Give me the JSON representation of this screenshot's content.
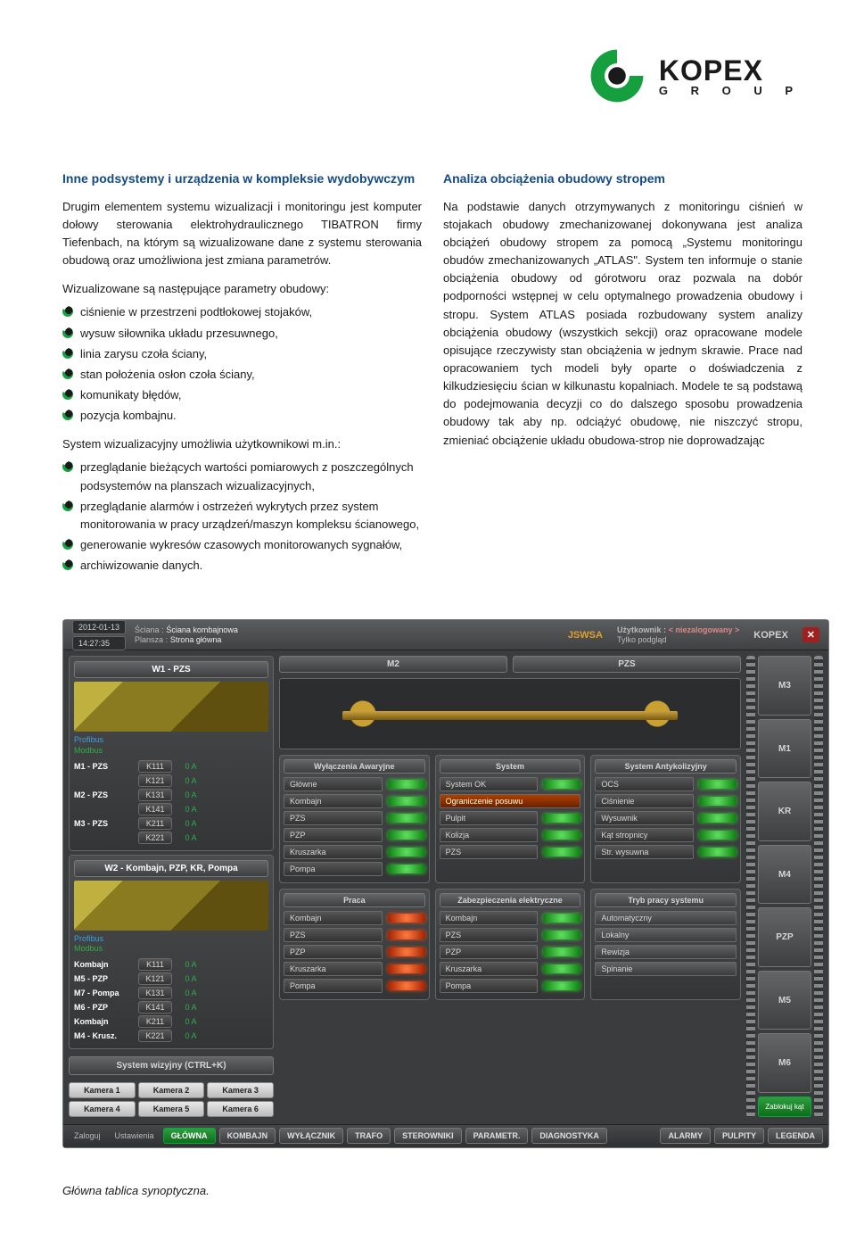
{
  "brand": {
    "name": "KOPEX",
    "sub": "G  R  O  U  P",
    "green": "#169f3e",
    "dark": "#1a1a1a"
  },
  "left": {
    "heading": "Inne podsystemy i urządzenia w kompleksie wydobywczym",
    "p1": "Drugim elementem systemu wizualizacji i monitoringu jest komputer dołowy sterowania elektrohydraulicznego TIBATRON firmy Tiefenbach, na którym są wizualizowane dane z systemu sterowania obudową oraz umożliwiona jest zmiana parametrów.",
    "sub1": "Wizualizowane są następujące parametry obudowy:",
    "list1": [
      "ciśnienie w przestrzeni podtłokowej stojaków,",
      "wysuw siłownika układu przesuwnego,",
      "linia zarysu czoła ściany,",
      "stan położenia osłon czoła ściany,",
      "komunikaty błędów,",
      "pozycja kombajnu."
    ],
    "sub2": "System wizualizacyjny umożliwia użytkownikowi m.in.:",
    "list2": [
      "przeglądanie bieżących wartości pomiarowych z poszczególnych podsystemów na planszach wizualizacyjnych,",
      "przeglądanie alarmów i ostrzeżeń wykrytych przez system monitorowania w pracy urządzeń/maszyn kompleksu ścianowego,",
      "generowanie wykresów czasowych monitorowanych sygnałów,",
      "archiwizowanie danych."
    ]
  },
  "right": {
    "heading": "Analiza obciążenia obudowy stropem",
    "p1": "Na podstawie danych otrzymywanych z monitoringu ciśnień w stojakach obudowy zmechanizowanej dokonywana jest analiza obciążeń obudowy stropem za pomocą „Systemu monitoringu obudów zmechanizowanych „ATLAS\". System ten informuje o stanie obciążenia obudowy od górotworu oraz pozwala na dobór podporności wstępnej w celu optymalnego prowadzenia obudowy i stropu. System ATLAS posiada rozbudowany system analizy obciążenia obudowy (wszystkich sekcji) oraz opracowane modele opisujące rzeczywisty stan obciążenia w jednym skrawie. Prace nad opracowaniem tych modeli były oparte o doświadczenia z kilkudziesięciu ścian w kilkunastu kopalniach. Modele te są podstawą do podejmowania decyzji co do dalszego sposobu prowadzenia obudowy tak aby np. odciążyć obudowę, nie niszczyć stropu, zmieniać obciążenie układu obudowa-strop nie doprowadzając"
  },
  "caption": "Główna tablica synoptyczna.",
  "ui": {
    "topbar": {
      "date": "2012-01-13",
      "time": "14:27:35",
      "l1": "Ściana :",
      "v1": "Ściana kombajnowa",
      "l2": "Plansza :",
      "v2": "Strona główna",
      "center": "JSWSA",
      "user_l": "Użytkownik :",
      "user_v": "< niezalogowany >",
      "mode": "Tylko podgląd",
      "brand": "KOPEX"
    },
    "side": {
      "p1": {
        "title": "W1 - PZS",
        "proto1": "Profibus",
        "proto2": "Modbus",
        "rows": [
          {
            "lab": "M1 - PZS",
            "k1": "K111",
            "v1": "0 A",
            "k2": "K121",
            "v2": "0 A"
          },
          {
            "lab": "M2 - PZS",
            "k1": "K131",
            "v1": "0 A",
            "k2": "K141",
            "v2": "0 A"
          },
          {
            "lab": "M3 - PZS",
            "k1": "K211",
            "v1": "0 A",
            "k2": "K221",
            "v2": "0 A"
          }
        ]
      },
      "p2": {
        "title": "W2 - Kombajn, PZP, KR, Pompa",
        "proto1": "Profibus",
        "proto2": "Modbus",
        "rows": [
          {
            "lab": "Kombajn",
            "k1": "K111",
            "v1": "0 A"
          },
          {
            "lab": "M5 - PZP",
            "k1": "K121",
            "v1": "0 A"
          },
          {
            "lab": "M7 - Pompa",
            "k1": "K131",
            "v1": "0 A"
          },
          {
            "lab": "M6 - PZP",
            "k1": "K141",
            "v1": "0 A"
          },
          {
            "lab": "Kombajn",
            "k1": "K211",
            "v1": "0 A"
          },
          {
            "lab": "M4 - Krusz.",
            "k1": "K221",
            "v1": "0 A"
          }
        ]
      },
      "vis": "System wizyjny (CTRL+K)",
      "cams": [
        "Kamera 1",
        "Kamera 2",
        "Kamera 3",
        "Kamera 4",
        "Kamera 5",
        "Kamera 6"
      ]
    },
    "center": {
      "hdr": [
        "M2",
        "PZS"
      ],
      "row1": {
        "a": {
          "t": "Wyłączenia Awaryjne",
          "items": [
            "Główne",
            "Kombajn",
            "PZS",
            "PZP",
            "Kruszarka",
            "Pompa"
          ]
        },
        "b": {
          "t": "System",
          "ok": "System OK",
          "warn": "Ograniczenie posuwu",
          "items": [
            "Pulpit",
            "Kolizja",
            "PZS"
          ]
        },
        "c": {
          "t": "System Antykolizyjny",
          "items": [
            "OCS",
            "Ciśnienie",
            "Wysuwnik",
            "Kąt stropnicy",
            "Str. wysuwna"
          ]
        }
      },
      "row2": {
        "a": {
          "t": "Praca",
          "items": [
            "Kombajn",
            "PZS",
            "PZP",
            "Kruszarka",
            "Pompa"
          ]
        },
        "b": {
          "t": "Zabezpieczenia elektryczne",
          "items": [
            "Kombajn",
            "PZS",
            "PZP",
            "Kruszarka",
            "Pompa"
          ]
        },
        "c": {
          "t": "Tryb pracy systemu",
          "items": [
            "Automatyczny",
            "Lokalny",
            "Rewizja",
            "Spinanie"
          ]
        }
      }
    },
    "right": {
      "boxes": [
        "M3",
        "M1",
        "KR",
        "M4",
        "PZP",
        "M5",
        "M6"
      ],
      "btn": "Zablokuj kąt"
    },
    "bottom": {
      "left": [
        "Zaloguj",
        "Ustawienia"
      ],
      "green": "GŁÓWNA",
      "tabs": [
        "KOMBAJN",
        "WYŁĄCZNIK",
        "TRAFO",
        "STEROWNIKI",
        "PARAMETR.",
        "DIAGNOSTYKA"
      ],
      "right": [
        "ALARMY",
        "PULPITY",
        "LEGENDA"
      ]
    }
  },
  "colors": {
    "heading": "#134a86",
    "led_green": "#21c22f",
    "led_orange": "#e05a10",
    "panel_bg": "#3a3c3e"
  }
}
